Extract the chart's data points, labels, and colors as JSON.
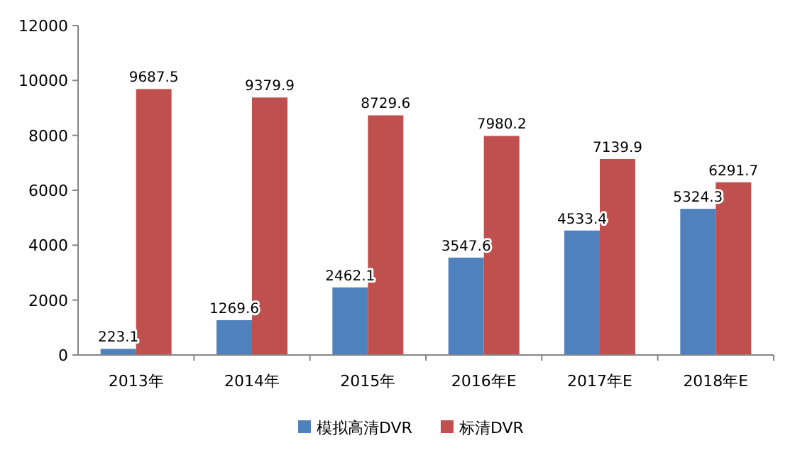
{
  "chart_data": {
    "type": "bar",
    "categories": [
      "2013年",
      "2014年",
      "2015年",
      "2016年E",
      "2017年E",
      "2018年E"
    ],
    "series": [
      {
        "name": "模拟高清DVR",
        "color": "#4f81bd",
        "values": [
          223.1,
          1269.6,
          2462.1,
          3547.6,
          4533.4,
          5324.3
        ]
      },
      {
        "name": "标清DVR",
        "color": "#c0504d",
        "values": [
          9687.5,
          9379.9,
          8729.6,
          7980.2,
          7139.9,
          6291.7
        ]
      }
    ],
    "ylim": [
      0,
      12000
    ],
    "yticks": [
      0,
      2000,
      4000,
      6000,
      8000,
      10000,
      12000
    ],
    "data_labels": true,
    "legend": "bottom",
    "grid": false
  }
}
